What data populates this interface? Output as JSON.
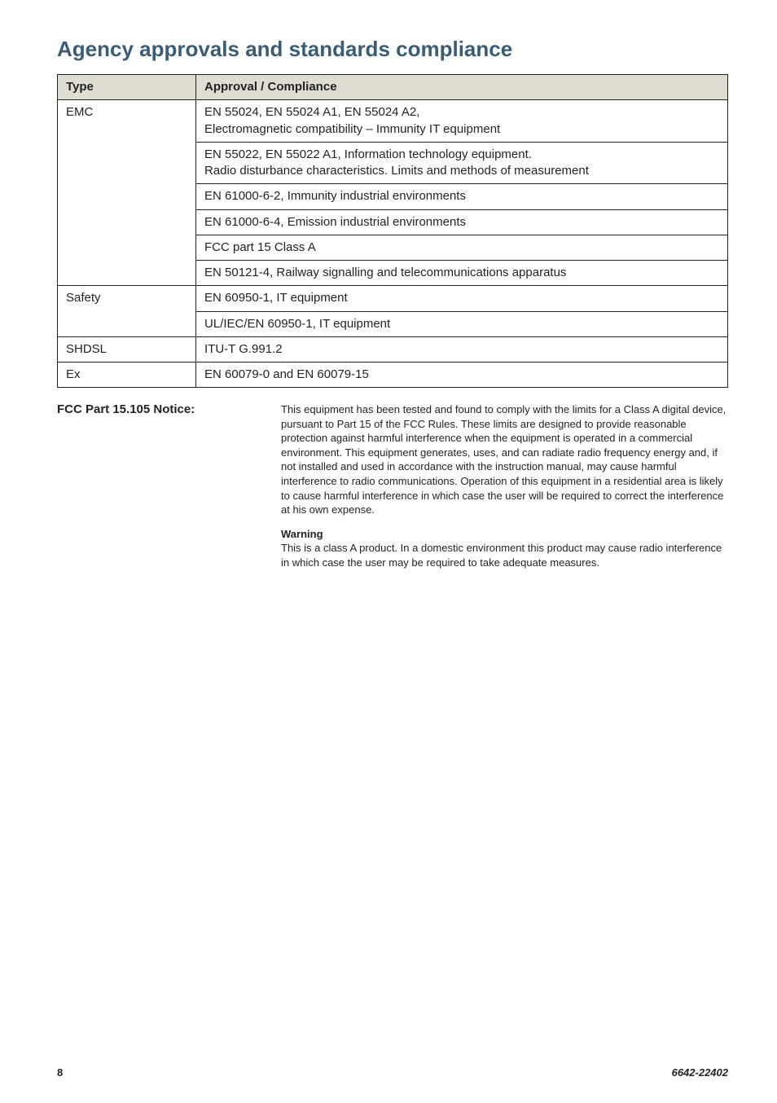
{
  "heading": "Agency approvals and standards compliance",
  "table": {
    "header": {
      "type": "Type",
      "compliance": "Approval / Compliance"
    },
    "rows": [
      {
        "type": "EMC",
        "compliance": "EN 55024, EN 55024 A1, EN 55024 A2,\nElectromagnetic compatibility – Immunity IT equipment"
      },
      {
        "type": "",
        "compliance": "EN 55022, EN 55022 A1, Information technology equipment.\nRadio disturbance characteristics. Limits and methods of measurement"
      },
      {
        "type": "",
        "compliance": "EN 61000-6-2, Immunity industrial environments"
      },
      {
        "type": "",
        "compliance": "EN 61000-6-4, Emission industrial environments"
      },
      {
        "type": "",
        "compliance": "FCC part 15 Class A"
      },
      {
        "type": "",
        "compliance": "EN 50121-4, Railway signalling and telecommunications apparatus"
      },
      {
        "type": "Safety",
        "compliance": "EN 60950-1, IT equipment"
      },
      {
        "type": "",
        "compliance": "UL/IEC/EN 60950-1, IT equipment"
      },
      {
        "type": "SHDSL",
        "compliance": "ITU-T G.991.2"
      },
      {
        "type": "Ex",
        "compliance": "EN 60079-0 and EN 60079-15"
      }
    ],
    "header_bg": "#e1dcd2",
    "border_color": "#232323",
    "font_size": 15
  },
  "notice": {
    "label": "FCC Part 15.105 Notice:",
    "body_p1": "This equipment has been tested and found to comply with the limits for a Class A digital device, pursuant to Part 15 of the FCC Rules. These limits are designed to provide reasonable protection against harmful interference when the equipment is operated in a commercial environment. This equipment generates, uses, and can radiate radio frequency energy and, if not installed and used in accordance with the instruction manual, may cause harmful interference to radio communications. Operation of this equipment in a residential area is likely to cause harmful interference in which case the user will be required to correct the interference at his own expense.",
    "warning_heading": "Warning",
    "body_p2": "This is a class A product. In a domestic environment this product may cause radio interference in which case the user may be required to take adequate measures."
  },
  "footer": {
    "page": "8",
    "doc": "6642-22402"
  },
  "colors": {
    "heading": "#3a5d75",
    "text": "#232323",
    "background": "#ffffff"
  }
}
